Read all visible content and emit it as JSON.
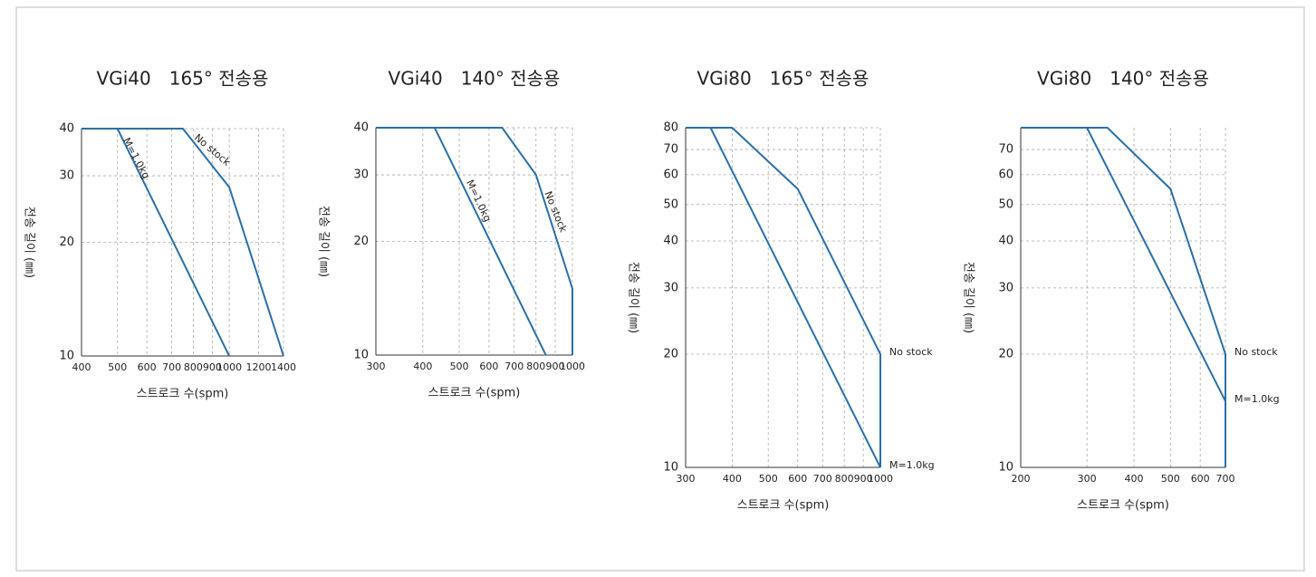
{
  "chart_data": [
    {
      "type": "line",
      "title": "VGi40　165° 전송용",
      "xlabel": "스트로크 수(spm)",
      "ylabel": "전송 길이 (㎜)",
      "xscale": "log",
      "yscale": "log",
      "grid": true,
      "xlim": [
        400,
        1400
      ],
      "xticks": [
        400,
        500,
        600,
        700,
        800,
        900,
        1000,
        1200,
        1400
      ],
      "ylim": [
        10,
        40
      ],
      "yticks": [
        10,
        20,
        30,
        40
      ],
      "series": [
        {
          "name": "M=1.0kg",
          "color": "#2a6fa8",
          "x": [
            400,
            500,
            1000
          ],
          "values": [
            40,
            40,
            10
          ]
        },
        {
          "name": "No stock",
          "color": "#2a6fa8",
          "x": [
            400,
            750,
            1000,
            1400
          ],
          "values": [
            40,
            40,
            28,
            10
          ]
        }
      ]
    },
    {
      "type": "line",
      "title": "VGi40　140° 전송용",
      "xlabel": "스트로크 수(spm)",
      "ylabel": "전송 길이 (㎜)",
      "xscale": "log",
      "yscale": "log",
      "grid": true,
      "xlim": [
        300,
        1000
      ],
      "xticks": [
        300,
        400,
        500,
        600,
        700,
        800,
        900,
        1000
      ],
      "ylim": [
        10,
        40
      ],
      "yticks": [
        10,
        20,
        30,
        40
      ],
      "series": [
        {
          "name": "M=1.0kg",
          "color": "#2a6fa8",
          "x": [
            300,
            430,
            850
          ],
          "values": [
            40,
            40,
            10
          ]
        },
        {
          "name": "No stock",
          "color": "#2a6fa8",
          "x": [
            300,
            650,
            800,
            1000,
            1000
          ],
          "values": [
            40,
            40,
            30,
            15,
            10
          ]
        }
      ]
    },
    {
      "type": "line",
      "title": "VGi80　165° 전송용",
      "xlabel": "스트로크 수(spm)",
      "ylabel": "전송 길이 (㎜)",
      "xscale": "log",
      "yscale": "log",
      "grid": true,
      "xlim": [
        300,
        1000
      ],
      "xticks": [
        300,
        400,
        500,
        600,
        700,
        800,
        900,
        1000
      ],
      "ylim": [
        10,
        80
      ],
      "yticks": [
        10,
        20,
        30,
        40,
        50,
        60,
        70,
        80
      ],
      "series": [
        {
          "name": "No stock",
          "color": "#2a6fa8",
          "x": [
            300,
            400,
            600,
            1000,
            1000
          ],
          "values": [
            80,
            80,
            55,
            20,
            10
          ]
        },
        {
          "name": "M=1.0kg",
          "color": "#2a6fa8",
          "x": [
            300,
            350,
            1000
          ],
          "values": [
            80,
            80,
            10
          ]
        }
      ]
    },
    {
      "type": "line",
      "title": "VGi80　140° 전송용",
      "xlabel": "스트로크 수(spm)",
      "ylabel": "전송 길이 (㎜)",
      "xscale": "log",
      "yscale": "log",
      "grid": true,
      "xlim": [
        200,
        700
      ],
      "xticks": [
        200,
        300,
        400,
        500,
        600,
        700
      ],
      "ylim": [
        10,
        80
      ],
      "yticks": [
        10,
        20,
        30,
        40,
        50,
        60,
        70
      ],
      "series": [
        {
          "name": "No stock",
          "color": "#2a6fa8",
          "x": [
            200,
            340,
            500,
            700,
            700
          ],
          "values": [
            80,
            80,
            55,
            20,
            10
          ]
        },
        {
          "name": "M=1.0kg",
          "color": "#2a6fa8",
          "x": [
            200,
            300,
            700
          ],
          "values": [
            80,
            80,
            15
          ]
        }
      ]
    }
  ]
}
